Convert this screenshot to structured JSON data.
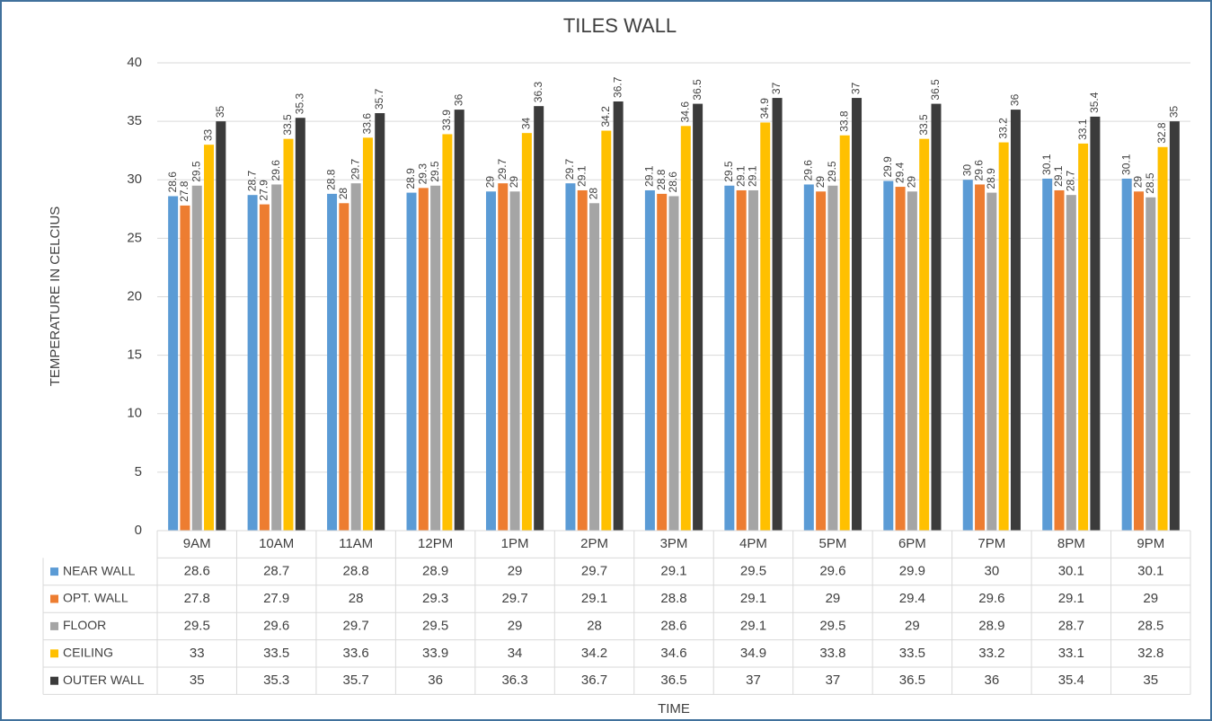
{
  "chart_data": {
    "type": "bar",
    "title": "TILES WALL",
    "y_label": "TEMPERATURE IN CELCIUS",
    "x_label": "TIME",
    "categories": [
      "9AM",
      "10AM",
      "11AM",
      "12PM",
      "1PM",
      "2PM",
      "3PM",
      "4PM",
      "5PM",
      "6PM",
      "7PM",
      "8PM",
      "9PM"
    ],
    "series": [
      {
        "name": "NEAR WALL",
        "color": "#5b9bd5",
        "values": [
          28.6,
          28.7,
          28.8,
          28.9,
          29,
          29.7,
          29.1,
          29.5,
          29.6,
          29.9,
          30,
          30.1,
          30.1
        ]
      },
      {
        "name": "OPT. WALL",
        "color": "#ed7d31",
        "values": [
          27.8,
          27.9,
          28,
          29.3,
          29.7,
          29.1,
          28.8,
          29.1,
          29,
          29.4,
          29.6,
          29.1,
          29
        ]
      },
      {
        "name": "FLOOR",
        "color": "#a5a5a5",
        "values": [
          29.5,
          29.6,
          29.7,
          29.5,
          29,
          28,
          28.6,
          29.1,
          29.5,
          29,
          28.9,
          28.7,
          28.5
        ]
      },
      {
        "name": "CEILING",
        "color": "#ffc000",
        "values": [
          33,
          33.5,
          33.6,
          33.9,
          34,
          34.2,
          34.6,
          34.9,
          33.8,
          33.5,
          33.2,
          33.1,
          32.8
        ]
      },
      {
        "name": "OUTER WALL",
        "color": "#3b3b3b",
        "values": [
          35,
          35.3,
          35.7,
          36,
          36.3,
          36.7,
          36.5,
          37,
          37,
          36.5,
          36,
          35.4,
          35
        ]
      }
    ],
    "ylim": [
      0,
      40
    ],
    "yticks": [
      0,
      5,
      10,
      15,
      20,
      25,
      30,
      35,
      40
    ],
    "grid": true,
    "data_labels": true,
    "data_table": true
  }
}
